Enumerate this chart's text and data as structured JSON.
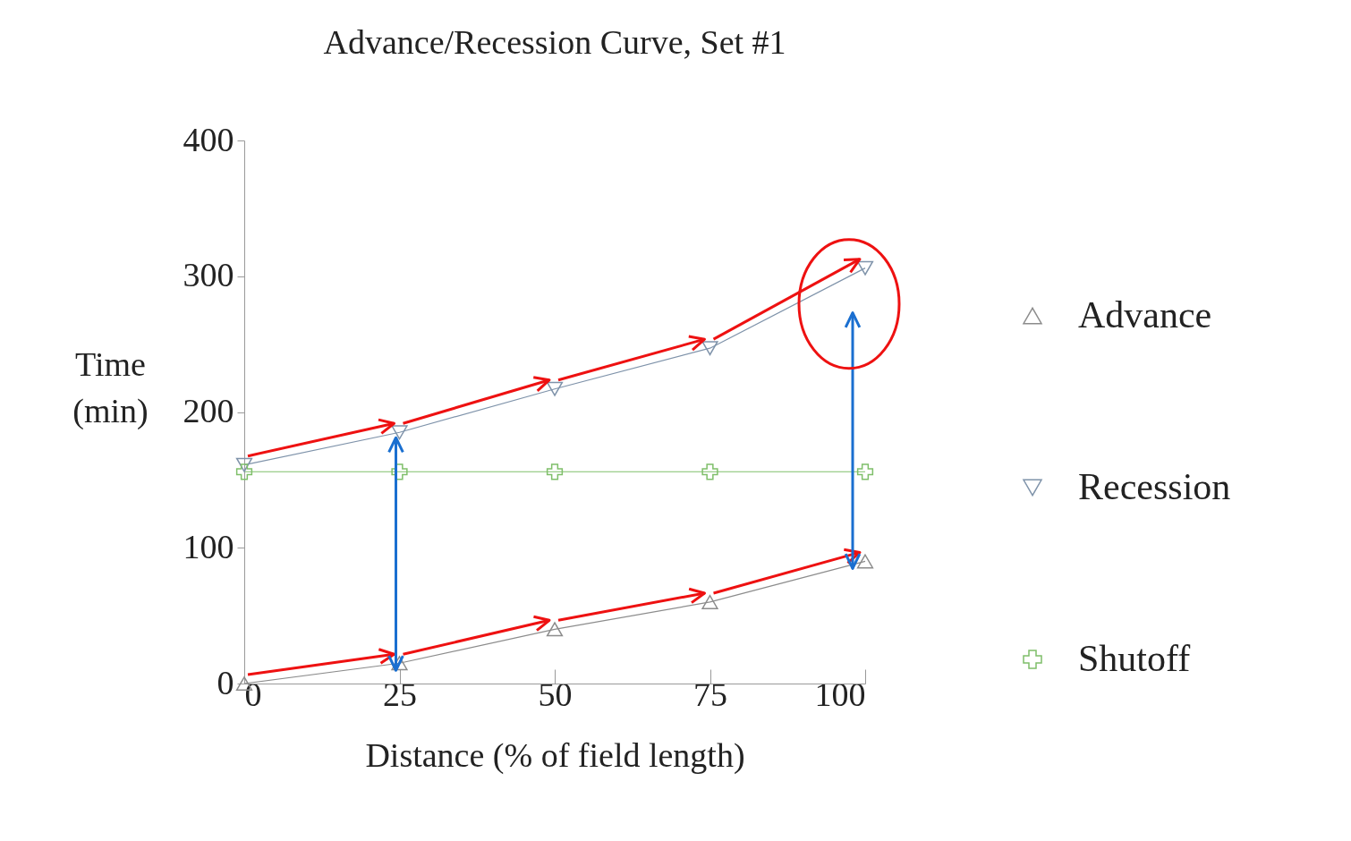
{
  "chart_data": {
    "type": "line",
    "title": "Advance/Recession Curve, Set #1",
    "xlabel": "Distance (% of field length)",
    "ylabel": "Time (min)",
    "x": [
      0,
      25,
      50,
      75,
      100
    ],
    "xlim": [
      0,
      100
    ],
    "xticks": [
      0,
      25,
      50,
      75,
      100
    ],
    "ylim": [
      0,
      400
    ],
    "yticks": [
      0,
      100,
      200,
      300,
      400
    ],
    "series": [
      {
        "name": "Advance",
        "color": "#8c8c8c",
        "marker": "triangle",
        "values": [
          0,
          15,
          40,
          60,
          90
        ]
      },
      {
        "name": "Recession",
        "color": "#7f93aa",
        "marker": "triangle-down",
        "values": [
          161,
          185,
          217,
          247,
          306
        ]
      },
      {
        "name": "Shutoff",
        "color": "#7fbf6a",
        "marker": "cross",
        "values": [
          156,
          156,
          156,
          156,
          156
        ]
      }
    ],
    "legend": "right",
    "grid": false
  }
}
